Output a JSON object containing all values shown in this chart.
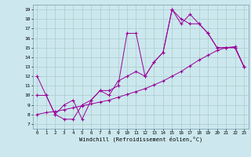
{
  "xlabel": "Windchill (Refroidissement éolien,°C)",
  "background_color": "#cce8ee",
  "grid_color": "#aacccc",
  "line_color": "#990099",
  "xlim": [
    -0.5,
    23.5
  ],
  "ylim": [
    6.5,
    19.5
  ],
  "xticks": [
    0,
    1,
    2,
    3,
    4,
    5,
    6,
    7,
    8,
    9,
    10,
    11,
    12,
    13,
    14,
    15,
    16,
    17,
    18,
    19,
    20,
    21,
    22,
    23
  ],
  "yticks": [
    7,
    8,
    9,
    10,
    11,
    12,
    13,
    14,
    15,
    16,
    17,
    18,
    19
  ],
  "line1_x": [
    0,
    1,
    2,
    3,
    4,
    5,
    6,
    7,
    8,
    9,
    10,
    11,
    12,
    13,
    14,
    15,
    16,
    17,
    18,
    19,
    20,
    21,
    22,
    23
  ],
  "line1_y": [
    12,
    10,
    8,
    7.5,
    7.5,
    9,
    9.5,
    10.5,
    10.5,
    11,
    16.5,
    16.5,
    12,
    13.5,
    14.5,
    19,
    17.5,
    18.5,
    17.5,
    16.5,
    15,
    15,
    15,
    13
  ],
  "line2_x": [
    0,
    1,
    2,
    3,
    4,
    5,
    6,
    7,
    8,
    9,
    10,
    11,
    12,
    13,
    14,
    15,
    16,
    17,
    18,
    19,
    20,
    21,
    22,
    23
  ],
  "line2_y": [
    10,
    10,
    8,
    9,
    9.5,
    7.5,
    9.5,
    10.5,
    10,
    11.5,
    12,
    12.5,
    12,
    13.5,
    14.5,
    19,
    18,
    17.5,
    17.5,
    16.5,
    15,
    15,
    15,
    13
  ],
  "line3_x": [
    0,
    1,
    2,
    3,
    4,
    5,
    6,
    7,
    8,
    9,
    10,
    11,
    12,
    13,
    14,
    15,
    16,
    17,
    18,
    19,
    20,
    21,
    22,
    23
  ],
  "line3_y": [
    8,
    8.2,
    8.3,
    8.5,
    8.7,
    8.9,
    9.1,
    9.3,
    9.5,
    9.8,
    10.1,
    10.4,
    10.7,
    11.1,
    11.5,
    12.0,
    12.5,
    13.1,
    13.7,
    14.2,
    14.7,
    15.0,
    15.1,
    13.0
  ]
}
